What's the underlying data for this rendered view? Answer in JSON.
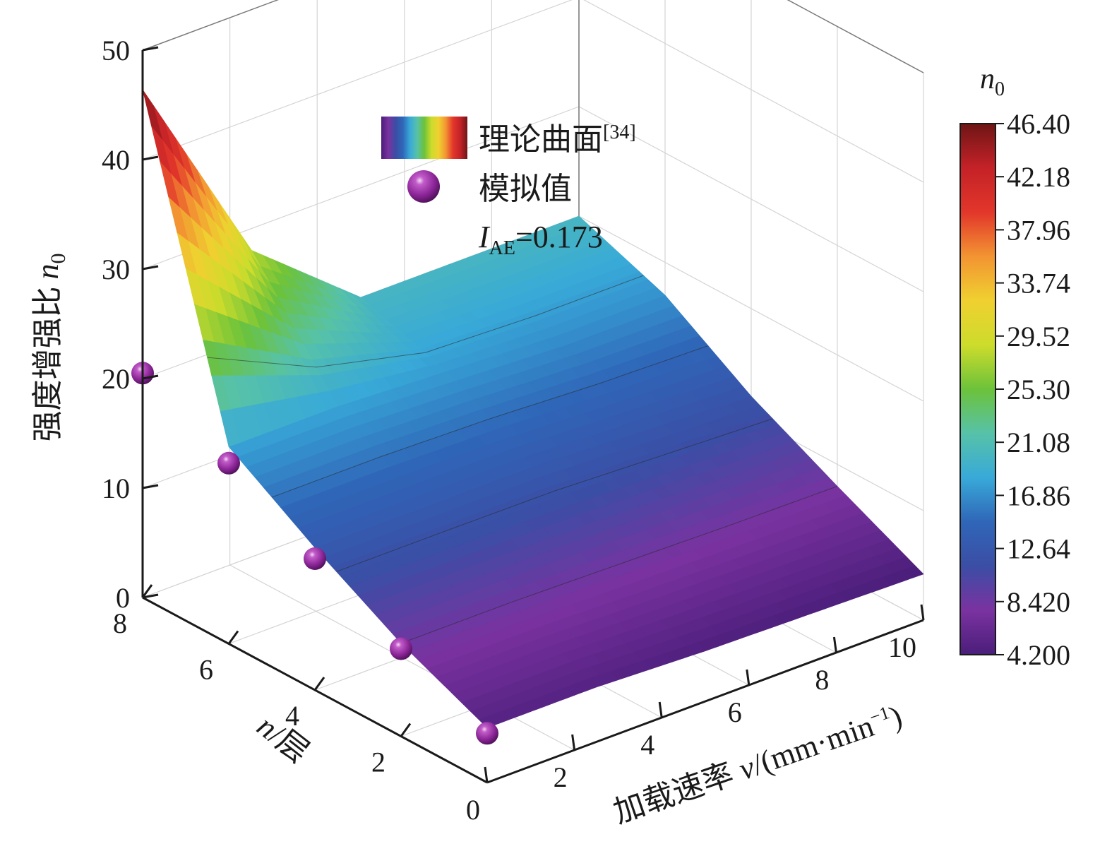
{
  "chart_data": {
    "type": "surface3d",
    "axes": {
      "x": {
        "label_main": "加载速率",
        "label_var": "v",
        "label_unit": "/(mm·min",
        "label_sup": "−1",
        "label_close": ")",
        "range": [
          0,
          10
        ],
        "ticks": [
          "0",
          "2",
          "4",
          "6",
          "8",
          "10"
        ]
      },
      "y": {
        "label_var": "n",
        "label_unit": "/层",
        "range": [
          0,
          8
        ],
        "ticks": [
          "2",
          "4",
          "6",
          "8"
        ]
      },
      "z": {
        "label_main": "强度增强比",
        "label_var": "n",
        "label_sub": "0",
        "range": [
          0,
          50
        ],
        "ticks": [
          "0",
          "10",
          "20",
          "30",
          "40",
          "50"
        ]
      }
    },
    "legend": {
      "surface_label": "理论曲面",
      "surface_ref": "[34]",
      "points_label": "模拟值",
      "metric_var": "I",
      "metric_sub": "AE",
      "metric_value": "=0.173"
    },
    "colorbar": {
      "title_var": "n",
      "title_sub": "0",
      "min": 4.2,
      "max": 46.4,
      "ticks": [
        "46.40",
        "42.18",
        "37.96",
        "33.74",
        "29.52",
        "25.30",
        "21.08",
        "16.86",
        "12.64",
        "8.420",
        "4.200"
      ],
      "colors": [
        "#4a1e7a",
        "#7a32a0",
        "#3b4ea5",
        "#2f66b8",
        "#38a9d8",
        "#57c2a8",
        "#6cc23a",
        "#cddc2c",
        "#f0d030",
        "#f29432",
        "#e2362a",
        "#c42228",
        "#6e1515"
      ]
    },
    "grid": true,
    "surface": {
      "v_values": [
        0,
        2.5,
        5,
        7.5,
        10
      ],
      "n_values": [
        0,
        2,
        4,
        6,
        8
      ],
      "n0_values": [
        [
          5.0,
          5.0,
          4.6,
          4.4,
          4.2
        ],
        [
          8.5,
          8.5,
          8.3,
          8.1,
          8.0
        ],
        [
          13.0,
          13.0,
          13.0,
          12.5,
          12.0
        ],
        [
          18.0,
          18.0,
          17.5,
          17.0,
          17.0
        ],
        [
          46.4,
          28.0,
          20.0,
          20.0,
          20.0
        ]
      ]
    },
    "points": [
      {
        "v": 0,
        "n": 8,
        "n0": 20.5
      },
      {
        "v": 0,
        "n": 6,
        "n0": 16.5
      },
      {
        "v": 0,
        "n": 4,
        "n0": 12.0
      },
      {
        "v": 0,
        "n": 2,
        "n0": 8.0
      },
      {
        "v": 0,
        "n": 0,
        "n0": 4.5
      }
    ]
  }
}
